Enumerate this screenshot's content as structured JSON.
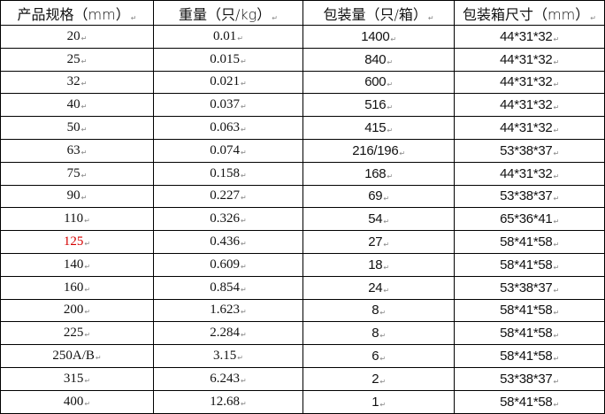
{
  "table": {
    "headers": [
      "产品规格（mm）",
      "重量（只/kg）",
      "包装量（只/箱）",
      "包装箱尺寸（mm）"
    ],
    "rows": [
      [
        "20",
        "0.01",
        "1400",
        "44*31*32"
      ],
      [
        "25",
        "0.015",
        "840",
        "44*31*32"
      ],
      [
        "32",
        "0.021",
        "600",
        "44*31*32"
      ],
      [
        "40",
        "0.037",
        "516",
        "44*31*32"
      ],
      [
        "50",
        "0.063",
        "415",
        "44*31*32"
      ],
      [
        "63",
        "0.074",
        "216/196",
        "53*38*37"
      ],
      [
        "75",
        "0.158",
        "168",
        "44*31*32"
      ],
      [
        "90",
        "0.227",
        "69",
        "53*38*37"
      ],
      [
        "110",
        "0.326",
        "54",
        "65*36*41"
      ],
      [
        "125",
        "0.436",
        "27",
        "58*41*58"
      ],
      [
        "140",
        "0.609",
        "18",
        "58*41*58"
      ],
      [
        "160",
        "0.854",
        "24",
        "53*38*37"
      ],
      [
        "200",
        "1.623",
        "8",
        "58*41*58"
      ],
      [
        "225",
        "2.284",
        "8",
        "58*41*58"
      ],
      [
        "250A/B",
        "3.15",
        "6",
        "58*41*58"
      ],
      [
        "315",
        "6.243",
        "2",
        "53*38*37"
      ],
      [
        "400",
        "12.68",
        "1",
        "58*41*58"
      ]
    ],
    "highlight_row_value": "125",
    "highlight_color": "#d40000"
  }
}
